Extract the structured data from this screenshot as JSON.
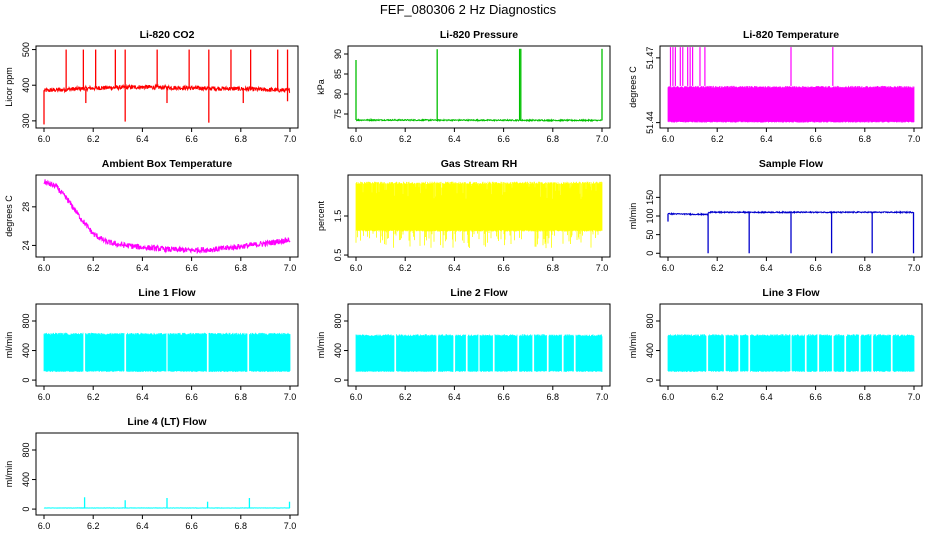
{
  "page": {
    "title": "FEF_080306  2 Hz Diagnostics"
  },
  "chart_data": [
    {
      "type": "line",
      "title": "Li-820 CO2",
      "xlabel": "",
      "ylabel": "Licor ppm",
      "color": "#ff0000",
      "xlim": [
        6.0,
        7.0
      ],
      "ylim": [
        280,
        510
      ],
      "x_ticks": [
        "6.0",
        "6.2",
        "6.4",
        "6.6",
        "6.8",
        "7.0"
      ],
      "y_ticks": [
        {
          "value": 300,
          "label": "300"
        },
        {
          "value": 400,
          "label": "400"
        },
        {
          "value": 500,
          "label": "500"
        }
      ],
      "series": [
        {
          "baseline": [
            [
              6.0,
              385
            ],
            [
              6.2,
              392
            ],
            [
              6.4,
              395
            ],
            [
              6.6,
              392
            ],
            [
              6.8,
              390
            ],
            [
              7.0,
              385
            ]
          ],
          "noise": 12,
          "spikes_up": [
            [
              6.09,
              500
            ],
            [
              6.16,
              500
            ],
            [
              6.21,
              500
            ],
            [
              6.29,
              500
            ],
            [
              6.33,
              500
            ],
            [
              6.46,
              500
            ],
            [
              6.59,
              500
            ],
            [
              6.67,
              500
            ],
            [
              6.76,
              500
            ],
            [
              6.84,
              500
            ],
            [
              6.95,
              500
            ],
            [
              6.99,
              500
            ]
          ],
          "spikes_down": [
            [
              6.0,
              290
            ],
            [
              6.17,
              350
            ],
            [
              6.33,
              298
            ],
            [
              6.5,
              350
            ],
            [
              6.67,
              295
            ],
            [
              6.81,
              350
            ],
            [
              6.99,
              355
            ]
          ]
        }
      ]
    },
    {
      "type": "line",
      "title": "Li-820 Pressure",
      "xlabel": "",
      "ylabel": "kPa",
      "color": "#00c000",
      "xlim": [
        6.0,
        7.0
      ],
      "ylim": [
        71.5,
        92
      ],
      "x_ticks": [
        "6.0",
        "6.2",
        "6.4",
        "6.6",
        "6.8",
        "7.0"
      ],
      "y_ticks": [
        {
          "value": 75,
          "label": "75"
        },
        {
          "value": 80,
          "label": "80"
        },
        {
          "value": 85,
          "label": "85"
        },
        {
          "value": 90,
          "label": "90"
        }
      ],
      "series": [
        {
          "baseline": [
            [
              6.0,
              73.5
            ],
            [
              7.0,
              73.4
            ]
          ],
          "noise": 0.3,
          "spikes_up": [
            [
              6.0,
              88.5
            ],
            [
              6.33,
              91.2
            ],
            [
              6.665,
              91.3
            ],
            [
              6.67,
              91.3
            ],
            [
              7.0,
              91.3
            ]
          ],
          "spikes_down": []
        }
      ]
    },
    {
      "type": "line",
      "title": "Li-820 Temperature",
      "xlabel": "",
      "ylabel": "degrees C",
      "color": "#ff00ff",
      "xlim": [
        6.0,
        7.0
      ],
      "ylim": [
        51.4375,
        51.4755
      ],
      "x_ticks": [
        "6.0",
        "6.2",
        "6.4",
        "6.6",
        "6.8",
        "7.0"
      ],
      "y_ticks": [
        {
          "value": 51.44,
          "label": "51.44"
        },
        {
          "value": 51.47,
          "label": "51.47"
        }
      ],
      "series": [
        {
          "band": [
            51.44,
            51.457
          ],
          "spikes_up": [
            [
              6.01,
              51.475
            ],
            [
              6.02,
              51.475
            ],
            [
              6.03,
              51.475
            ],
            [
              6.05,
              51.475
            ],
            [
              6.06,
              51.475
            ],
            [
              6.08,
              51.475
            ],
            [
              6.09,
              51.475
            ],
            [
              6.1,
              51.475
            ],
            [
              6.13,
              51.475
            ],
            [
              6.15,
              51.475
            ],
            [
              6.5,
              51.475
            ],
            [
              6.67,
              51.475
            ]
          ]
        }
      ]
    },
    {
      "type": "line",
      "title": "Ambient Box Temperature",
      "xlabel": "",
      "ylabel": "degrees C",
      "color": "#ff00ff",
      "xlim": [
        6.0,
        7.0
      ],
      "ylim": [
        22.8,
        31.3
      ],
      "x_ticks": [
        "6.0",
        "6.2",
        "6.4",
        "6.6",
        "6.8",
        "7.0"
      ],
      "y_ticks": [
        {
          "value": 24,
          "label": "24"
        },
        {
          "value": 28,
          "label": "28"
        }
      ],
      "series": [
        {
          "baseline": [
            [
              6.0,
              30.6
            ],
            [
              6.05,
              30.1
            ],
            [
              6.1,
              28.6
            ],
            [
              6.15,
              26.8
            ],
            [
              6.2,
              25.2
            ],
            [
              6.25,
              24.4
            ],
            [
              6.3,
              24.1
            ],
            [
              6.4,
              23.8
            ],
            [
              6.5,
              23.6
            ],
            [
              6.6,
              23.5
            ],
            [
              6.7,
              23.6
            ],
            [
              6.8,
              23.9
            ],
            [
              6.9,
              24.2
            ],
            [
              7.0,
              24.6
            ]
          ],
          "noise": 0.6,
          "spikes_up": [],
          "spikes_down": []
        }
      ]
    },
    {
      "type": "line",
      "title": "Gas Stream RH",
      "xlabel": "",
      "ylabel": "percent",
      "color": "#ffff00",
      "xlim": [
        6.0,
        7.0
      ],
      "ylim": [
        0.45,
        2.55
      ],
      "x_ticks": [
        "6.0",
        "6.2",
        "6.4",
        "6.6",
        "6.8",
        "7.0"
      ],
      "y_ticks": [
        {
          "value": 0.5,
          "label": "0.5"
        },
        {
          "value": 1.5,
          "label": "1.5"
        }
      ],
      "series": [
        {
          "band": [
            1.1,
            2.38
          ],
          "dips": 0.55,
          "spikes_up": []
        }
      ]
    },
    {
      "type": "line",
      "title": "Sample Flow",
      "xlabel": "",
      "ylabel": "ml/min",
      "color": "#0000cc",
      "xlim": [
        6.0,
        7.0
      ],
      "ylim": [
        -10,
        210
      ],
      "x_ticks": [
        "6.0",
        "6.2",
        "6.4",
        "6.6",
        "6.8",
        "7.0"
      ],
      "y_ticks": [
        {
          "value": 0,
          "label": "0"
        },
        {
          "value": 50,
          "label": "50"
        },
        {
          "value": 100,
          "label": "100"
        },
        {
          "value": 150,
          "label": "150"
        }
      ],
      "series": [
        {
          "baseline": [
            [
              6.0,
              106
            ],
            [
              6.16,
              104
            ],
            [
              6.165,
              110
            ],
            [
              7.0,
              110
            ]
          ],
          "noise": 3,
          "spikes_up": [],
          "spikes_down": [
            [
              6.0,
              85
            ],
            [
              6.163,
              0
            ],
            [
              6.33,
              0
            ],
            [
              6.5,
              0
            ],
            [
              6.665,
              0
            ],
            [
              6.83,
              0
            ],
            [
              6.998,
              0
            ]
          ]
        }
      ]
    },
    {
      "type": "line",
      "title": "Line 1 Flow",
      "xlabel": "",
      "ylabel": "ml/min",
      "color": "#00ffff",
      "xlim": [
        6.0,
        7.0
      ],
      "ylim": [
        -80,
        1030
      ],
      "x_ticks": [
        "6.0",
        "6.2",
        "6.4",
        "6.6",
        "6.8",
        "7.0"
      ],
      "y_ticks": [
        {
          "value": 0,
          "label": "0"
        },
        {
          "value": 400,
          "label": "400"
        },
        {
          "value": 800,
          "label": "800"
        }
      ],
      "series": [
        {
          "band": [
            110,
            640
          ],
          "gaps": [
            6.163,
            6.33,
            6.5,
            6.665,
            6.83
          ],
          "spikes_up": []
        }
      ]
    },
    {
      "type": "line",
      "title": "Line 2 Flow",
      "xlabel": "",
      "ylabel": "ml/min",
      "color": "#00ffff",
      "xlim": [
        6.0,
        7.0
      ],
      "ylim": [
        -80,
        1030
      ],
      "x_ticks": [
        "6.0",
        "6.2",
        "6.4",
        "6.6",
        "6.8",
        "7.0"
      ],
      "y_ticks": [
        {
          "value": 0,
          "label": "0"
        },
        {
          "value": 400,
          "label": "400"
        },
        {
          "value": 800,
          "label": "800"
        }
      ],
      "series": [
        {
          "band": [
            110,
            620
          ],
          "gaps": [
            6.16,
            6.33,
            6.4,
            6.45,
            6.5,
            6.56,
            6.66,
            6.72,
            6.78,
            6.84,
            6.89
          ],
          "spikes_up": []
        }
      ]
    },
    {
      "type": "line",
      "title": "Line 3 Flow",
      "xlabel": "",
      "ylabel": "ml/min",
      "color": "#00ffff",
      "xlim": [
        6.0,
        7.0
      ],
      "ylim": [
        -80,
        1030
      ],
      "x_ticks": [
        "6.0",
        "6.2",
        "6.4",
        "6.6",
        "6.8",
        "7.0"
      ],
      "y_ticks": [
        {
          "value": 0,
          "label": "0"
        },
        {
          "value": 400,
          "label": "400"
        },
        {
          "value": 800,
          "label": "800"
        }
      ],
      "series": [
        {
          "band": [
            110,
            620
          ],
          "gaps": [
            6.16,
            6.23,
            6.29,
            6.33,
            6.5,
            6.56,
            6.61,
            6.67,
            6.72,
            6.78,
            6.83,
            6.91
          ],
          "spikes_up": []
        }
      ]
    },
    {
      "type": "line",
      "title": "Line 4 (LT) Flow",
      "xlabel": "",
      "ylabel": "ml/min",
      "color": "#00ffff",
      "xlim": [
        6.0,
        7.0
      ],
      "ylim": [
        -80,
        1030
      ],
      "x_ticks": [
        "6.0",
        "6.2",
        "6.4",
        "6.6",
        "6.8",
        "7.0"
      ],
      "y_ticks": [
        {
          "value": 0,
          "label": "0"
        },
        {
          "value": 400,
          "label": "400"
        },
        {
          "value": 800,
          "label": "800"
        }
      ],
      "series": [
        {
          "baseline": [
            [
              6.0,
              15
            ],
            [
              7.0,
              15
            ]
          ],
          "noise": 4,
          "spikes_up": [
            [
              6.165,
              160
            ],
            [
              6.33,
              120
            ],
            [
              6.5,
              150
            ],
            [
              6.665,
              100
            ],
            [
              6.835,
              150
            ],
            [
              6.998,
              100
            ]
          ],
          "spikes_down": []
        }
      ]
    }
  ]
}
